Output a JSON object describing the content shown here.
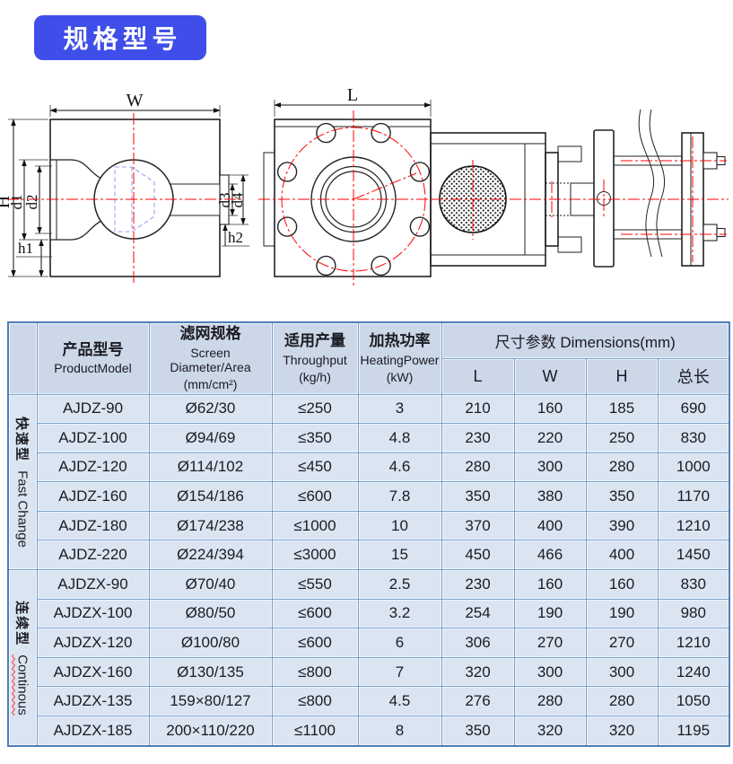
{
  "badge": {
    "label": "规格型号"
  },
  "drawing": {
    "labels": {
      "W": "W",
      "H": "H",
      "d1": "d1",
      "d2": "d2",
      "d3": "d3",
      "d4": "d4",
      "h1": "h1",
      "h2": "h2",
      "L": "L"
    }
  },
  "table": {
    "columns": [
      {
        "zh": "产品型号",
        "en": "ProductModel",
        "unit": ""
      },
      {
        "zh": "滤网规格",
        "en": "Screen Diameter/Area",
        "unit": "(mm/cm²)"
      },
      {
        "zh": "适用产量",
        "en": "Throughput",
        "unit": "(kg/h)"
      },
      {
        "zh": "加热功率",
        "en": "HeatingPower",
        "unit": "(kW)"
      }
    ],
    "dimensions_header": "尺寸参数 Dimensions(mm)",
    "dim_cols": [
      "L",
      "W",
      "H",
      "总长"
    ],
    "groups": [
      {
        "label_zh": "快速型",
        "label_en": "Fast Change",
        "spellcheck_underline": false,
        "rows": [
          [
            "AJDZ-90",
            "Ø62/30",
            "≤250",
            "3",
            "210",
            "160",
            "185",
            "690"
          ],
          [
            "AJDZ-100",
            "Ø94/69",
            "≤350",
            "4.8",
            "230",
            "220",
            "250",
            "830"
          ],
          [
            "AJDZ-120",
            "Ø114/102",
            "≤450",
            "4.6",
            "280",
            "300",
            "280",
            "1000"
          ],
          [
            "AJDZ-160",
            "Ø154/186",
            "≤600",
            "7.8",
            "350",
            "380",
            "350",
            "1170"
          ],
          [
            "AJDZ-180",
            "Ø174/238",
            "≤1000",
            "10",
            "370",
            "400",
            "390",
            "1210"
          ],
          [
            "AJDZ-220",
            "Ø224/394",
            "≤3000",
            "15",
            "450",
            "466",
            "400",
            "1450"
          ]
        ]
      },
      {
        "label_zh": "连续型",
        "label_en": "Continous",
        "spellcheck_underline": true,
        "rows": [
          [
            "AJDZX-90",
            "Ø70/40",
            "≤550",
            "2.5",
            "230",
            "160",
            "160",
            "830"
          ],
          [
            "AJDZX-100",
            "Ø80/50",
            "≤600",
            "3.2",
            "254",
            "190",
            "190",
            "980"
          ],
          [
            "AJDZX-120",
            "Ø100/80",
            "≤600",
            "6",
            "306",
            "270",
            "270",
            "1210"
          ],
          [
            "AJDZX-160",
            "Ø130/135",
            "≤800",
            "7",
            "320",
            "300",
            "300",
            "1240"
          ],
          [
            "AJDZX-135",
            "159×80/127",
            "≤800",
            "4.5",
            "276",
            "280",
            "280",
            "1050"
          ],
          [
            "AJDZX-185",
            "200×110/220",
            "≤1100",
            "8",
            "350",
            "320",
            "320",
            "1195"
          ]
        ]
      }
    ]
  }
}
